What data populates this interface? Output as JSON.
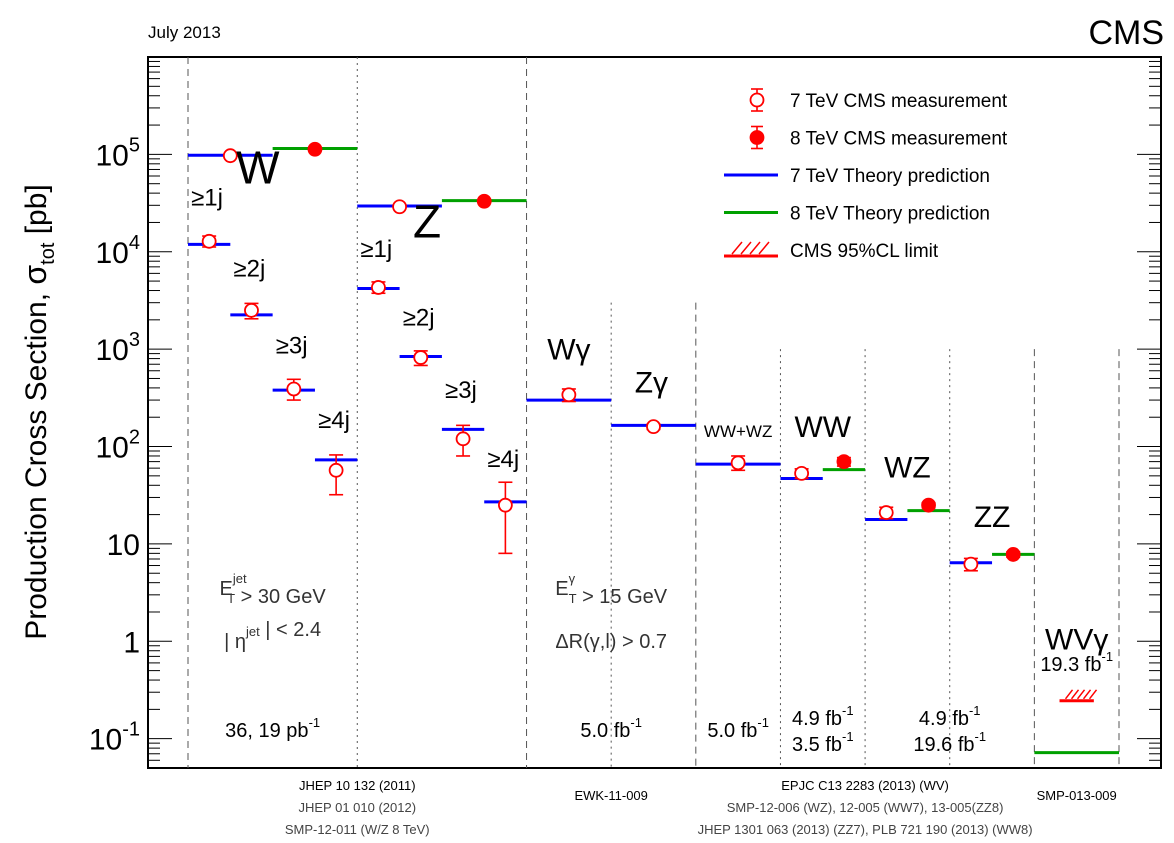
{
  "chart_data": {
    "type": "scatter",
    "title": "",
    "date_text": "July 2013",
    "experiment": "CMS",
    "ylabel": {
      "main": "Production Cross Section,",
      "symbol": "σ",
      "sub": "tot",
      "unit": "[pb]"
    },
    "yscale": "log",
    "ylim": [
      0.05,
      1000000
    ],
    "ytick_labels": [
      {
        "value": 0.1,
        "base": "10",
        "exp": "-1"
      },
      {
        "value": 1,
        "base": "1",
        "exp": ""
      },
      {
        "value": 10,
        "base": "10",
        "exp": ""
      },
      {
        "value": 100,
        "base": "10",
        "exp": "2"
      },
      {
        "value": 1000,
        "base": "10",
        "exp": "3"
      },
      {
        "value": 10000,
        "base": "10",
        "exp": "4"
      },
      {
        "value": 100000,
        "base": "10",
        "exp": "5"
      }
    ],
    "grid": false,
    "legend_position": "top-right",
    "legend": [
      {
        "marker": "open-circle",
        "label": "7 TeV CMS measurement",
        "color": "#ff0000"
      },
      {
        "marker": "filled-circle",
        "label": "8 TeV CMS measurement",
        "color": "#ff0000"
      },
      {
        "marker": "line",
        "label": "7 TeV Theory prediction",
        "color": "#0000ff"
      },
      {
        "marker": "line",
        "label": "8 TeV Theory prediction",
        "color": "#00a000"
      },
      {
        "marker": "hatch",
        "label": "CMS 95%CL limit",
        "color": "#ff0000"
      }
    ],
    "colors": {
      "measurement": "#ff0000",
      "theory_7tev": "#0000ff",
      "theory_8tev": "#00a000",
      "divider": "#555555",
      "text": "#000000",
      "note": "#333333"
    },
    "series": [
      {
        "name": "7 TeV CMS measurement",
        "marker": "open",
        "points": [
          {
            "x": 2,
            "y": 97000,
            "lo": 95000,
            "hi": 99000
          },
          {
            "x": 1,
            "y": 12800,
            "lo": 11200,
            "hi": 14500
          },
          {
            "x": 3,
            "y": 2500,
            "lo": 2050,
            "hi": 2950
          },
          {
            "x": 5,
            "y": 390,
            "lo": 300,
            "hi": 490
          },
          {
            "x": 7,
            "y": 57,
            "lo": 32,
            "hi": 82
          },
          {
            "x": 10,
            "y": 29000,
            "lo": 28300,
            "hi": 29700
          },
          {
            "x": 9,
            "y": 4300,
            "lo": 3750,
            "hi": 4900
          },
          {
            "x": 11,
            "y": 820,
            "lo": 680,
            "hi": 960
          },
          {
            "x": 13,
            "y": 120,
            "lo": 80,
            "hi": 165
          },
          {
            "x": 15,
            "y": 25,
            "lo": 8,
            "hi": 43
          },
          {
            "x": 18,
            "y": 340,
            "lo": 290,
            "hi": 390
          },
          {
            "x": 22,
            "y": 160,
            "lo": 150,
            "hi": 170
          },
          {
            "x": 26,
            "y": 68,
            "lo": 57,
            "hi": 80
          },
          {
            "x": 29,
            "y": 53,
            "lo": 47,
            "hi": 59
          },
          {
            "x": 33,
            "y": 21,
            "lo": 18.2,
            "hi": 23.8
          },
          {
            "x": 37,
            "y": 6.2,
            "lo": 5.3,
            "hi": 7.1
          }
        ]
      },
      {
        "name": "8 TeV CMS measurement",
        "marker": "filled",
        "points": [
          {
            "x": 6,
            "y": 113000,
            "lo": 111000,
            "hi": 115000
          },
          {
            "x": 14,
            "y": 33000,
            "lo": 32400,
            "hi": 33600
          },
          {
            "x": 31,
            "y": 70,
            "lo": 63,
            "hi": 77
          },
          {
            "x": 35,
            "y": 25,
            "lo": 23.5,
            "hi": 26.5
          },
          {
            "x": 39,
            "y": 7.8,
            "lo": 7.3,
            "hi": 8.3
          }
        ]
      },
      {
        "name": "7 TeV Theory prediction",
        "segments": [
          {
            "x0": 0,
            "x1": 4,
            "y": 98000
          },
          {
            "x0": 0,
            "x1": 2,
            "y": 11900
          },
          {
            "x0": 2,
            "x1": 4,
            "y": 2250
          },
          {
            "x0": 4,
            "x1": 6,
            "y": 380
          },
          {
            "x0": 6,
            "x1": 8,
            "y": 73
          },
          {
            "x0": 8,
            "x1": 12,
            "y": 29500
          },
          {
            "x0": 8,
            "x1": 10,
            "y": 4200
          },
          {
            "x0": 10,
            "x1": 12,
            "y": 840
          },
          {
            "x0": 12,
            "x1": 14,
            "y": 150
          },
          {
            "x0": 14,
            "x1": 16,
            "y": 27
          },
          {
            "x0": 16,
            "x1": 20,
            "y": 300
          },
          {
            "x0": 20,
            "x1": 24,
            "y": 165
          },
          {
            "x0": 24,
            "x1": 28,
            "y": 66
          },
          {
            "x0": 28,
            "x1": 30,
            "y": 47
          },
          {
            "x0": 32,
            "x1": 34,
            "y": 17.8
          },
          {
            "x0": 36,
            "x1": 38,
            "y": 6.4
          }
        ]
      },
      {
        "name": "8 TeV Theory prediction",
        "segments": [
          {
            "x0": 4,
            "x1": 8,
            "y": 115000
          },
          {
            "x0": 12,
            "x1": 16,
            "y": 33500
          },
          {
            "x0": 30,
            "x1": 32,
            "y": 58
          },
          {
            "x0": 34,
            "x1": 36,
            "y": 22
          },
          {
            "x0": 38,
            "x1": 40,
            "y": 7.8
          },
          {
            "x0": 40,
            "x1": 44,
            "y": 0.072
          }
        ]
      },
      {
        "name": "CMS 95%CL limit",
        "segments": [
          {
            "x0": 41,
            "x1": 43,
            "y": 0.245
          }
        ]
      }
    ],
    "dividers": [
      {
        "x": 0,
        "style": "dashed",
        "top": null
      },
      {
        "x": 8,
        "style": "dotted",
        "top": null
      },
      {
        "x": 16,
        "style": "dashed",
        "top": null
      },
      {
        "x": 20,
        "style": "dotted",
        "top": 3000
      },
      {
        "x": 24,
        "style": "dashed",
        "top": 3000
      },
      {
        "x": 28,
        "style": "dotted",
        "top": 1000
      },
      {
        "x": 32,
        "style": "dotted",
        "top": 1000
      },
      {
        "x": 36,
        "style": "dotted",
        "top": 1000
      },
      {
        "x": 40,
        "style": "dashed",
        "top": 1000
      },
      {
        "x": 44,
        "style": "dashed",
        "top": 1000
      }
    ],
    "process_labels": [
      {
        "text": "W",
        "x": 3.3,
        "y": 50000,
        "size": "xl"
      },
      {
        "text": "Z",
        "x": 11.3,
        "y": 14000,
        "size": "xl"
      },
      {
        "text": "≥1j",
        "x": 0.9,
        "y": 30000,
        "size": "md"
      },
      {
        "text": "≥2j",
        "x": 2.9,
        "y": 5600,
        "size": "md"
      },
      {
        "text": "≥3j",
        "x": 4.9,
        "y": 900,
        "size": "md"
      },
      {
        "text": "≥4j",
        "x": 6.9,
        "y": 155,
        "size": "md"
      },
      {
        "text": "≥1j",
        "x": 8.9,
        "y": 8800,
        "size": "md"
      },
      {
        "text": "≥2j",
        "x": 10.9,
        "y": 1750,
        "size": "md"
      },
      {
        "text": "≥3j",
        "x": 12.9,
        "y": 315,
        "size": "md"
      },
      {
        "text": "≥4j",
        "x": 14.9,
        "y": 62,
        "size": "md"
      },
      {
        "text": "Wγ",
        "x": 18,
        "y": 780,
        "size": "lg"
      },
      {
        "text": "Zγ",
        "x": 21.9,
        "y": 360,
        "size": "lg"
      },
      {
        "text": "WW+WZ",
        "x": 26.0,
        "y": 125,
        "size": "sm"
      },
      {
        "text": "WW",
        "x": 30.0,
        "y": 125,
        "size": "lg"
      },
      {
        "text": "WZ",
        "x": 34.0,
        "y": 48,
        "size": "lg"
      },
      {
        "text": "ZZ",
        "x": 38.0,
        "y": 15,
        "size": "lg"
      },
      {
        "text": "WVγ",
        "x": 42.0,
        "y": 0.82,
        "size": "lg"
      }
    ],
    "cut_notes": [
      {
        "x": 4,
        "y": 3.0,
        "parts": [
          {
            "t": "E",
            "sup": "jet",
            "sub": "T"
          },
          {
            "t": " > 30 GeV"
          }
        ]
      },
      {
        "x": 4,
        "y": 0.85,
        "parts": [
          {
            "t": "| η"
          },
          {
            "t": "",
            "sup": "jet"
          },
          {
            "t": " | < 2.4"
          }
        ]
      },
      {
        "x": 20,
        "y": 3.0,
        "parts": [
          {
            "t": "E",
            "sup": "γ",
            "sub": "T"
          },
          {
            "t": " > 15 GeV"
          }
        ]
      },
      {
        "x": 20,
        "y": 0.85,
        "parts": [
          {
            "t": "ΔR(γ,l) > 0.7"
          }
        ]
      }
    ],
    "lumi_notes": [
      {
        "x": 4,
        "lines": [
          [
            {
              "t": "36, 19 pb"
            },
            {
              "sup": "-1"
            }
          ]
        ]
      },
      {
        "x": 20,
        "lines": [
          [
            {
              "t": "5.0 fb"
            },
            {
              "sup": "-1"
            }
          ]
        ]
      },
      {
        "x": 26,
        "lines": [
          [
            {
              "t": "5.0 fb"
            },
            {
              "sup": "-1"
            }
          ]
        ]
      },
      {
        "x": 30,
        "lines": [
          [
            {
              "t": "4.9 fb"
            },
            {
              "sup": "-1"
            }
          ],
          [
            {
              "t": "3.5 fb"
            },
            {
              "sup": "-1"
            }
          ]
        ]
      },
      {
        "x": 36,
        "lines": [
          [
            {
              "t": "4.9 fb"
            },
            {
              "sup": "-1"
            }
          ],
          [
            {
              "t": "19.6 fb"
            },
            {
              "sup": "-1"
            }
          ]
        ]
      },
      {
        "x": 42,
        "lines": [
          [
            {
              "t": "19.3 fb"
            },
            {
              "sup": "-1"
            }
          ]
        ],
        "upper": true
      }
    ],
    "references": [
      {
        "text": "JHEP 10 132 (2011)",
        "x": 8,
        "row": 0
      },
      {
        "text": "JHEP 01 010 (2012)",
        "x": 8,
        "row": 1
      },
      {
        "text": "SMP-12-011 (W/Z 8 TeV)",
        "x": 8,
        "row": 2
      },
      {
        "text": "EWK-11-009",
        "x": 20,
        "row": 0.6
      },
      {
        "text": "EPJC C13 2283 (2013) (WV)",
        "x": 32,
        "row": 0
      },
      {
        "text": "SMP-12-006 (WZ), 12-005 (WW7), 13-005(ZZ8)",
        "x": 32,
        "row": 1
      },
      {
        "text": "JHEP 1301 063 (2013) (ZZ7), PLB 721 190 (2013) (WW8)",
        "x": 32,
        "row": 2
      },
      {
        "text": "SMP-013-009",
        "x": 42,
        "row": 0.6
      }
    ]
  }
}
